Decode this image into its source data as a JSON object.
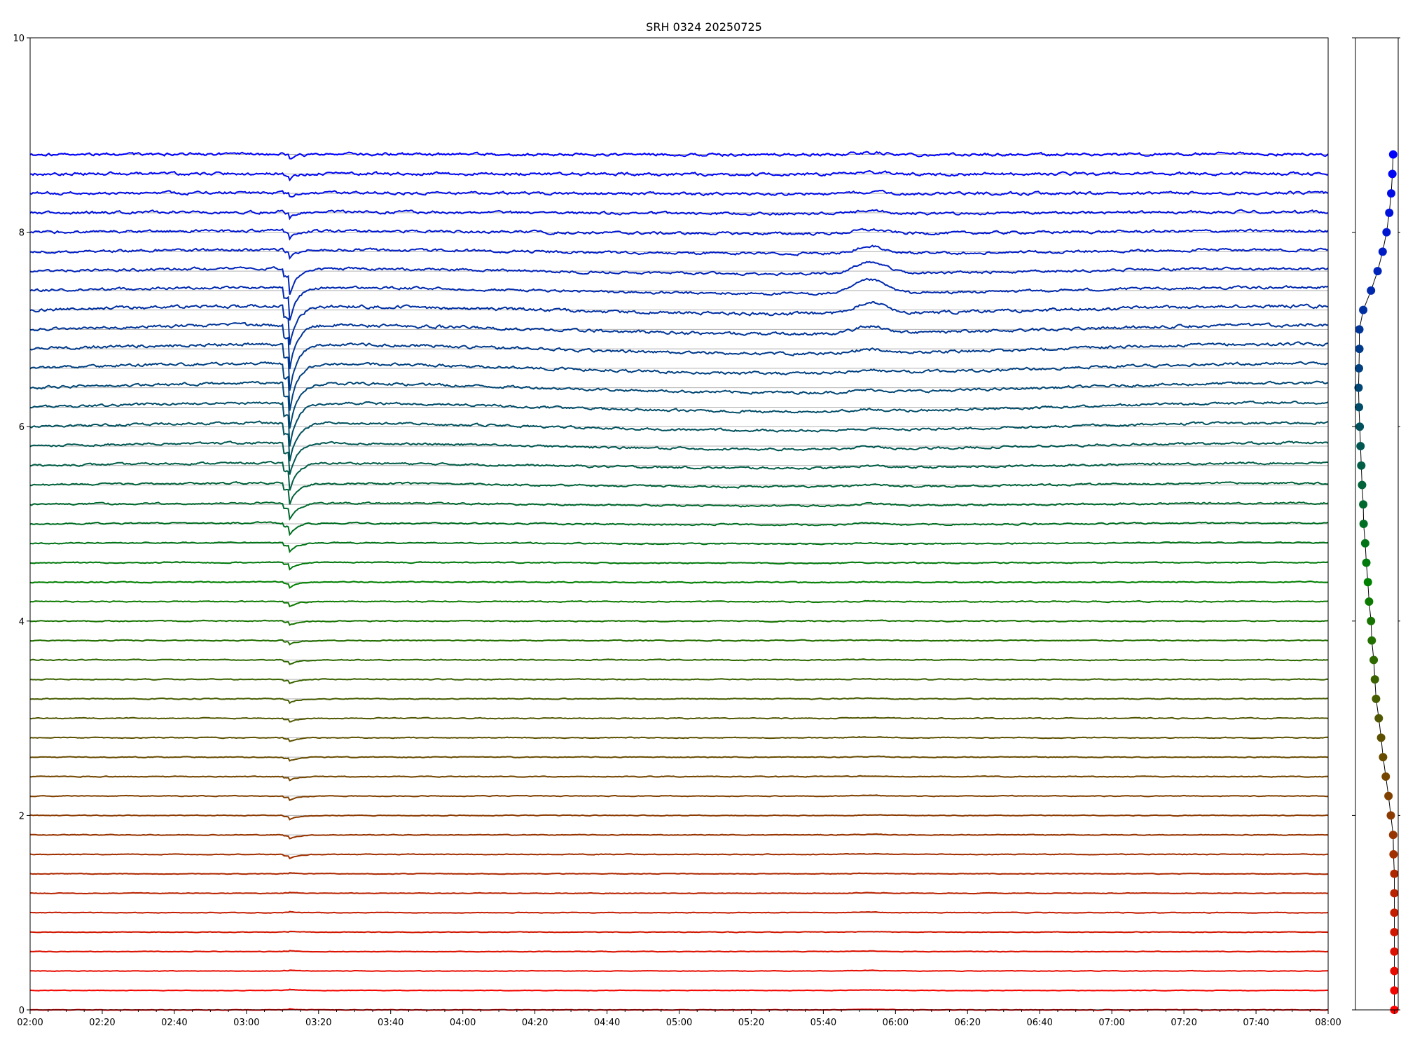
{
  "chart_data": {
    "type": "line",
    "title": "SRH 0324 20250725",
    "xlabel": "",
    "ylabel": "",
    "x_range": [
      "02:00",
      "08:00"
    ],
    "ylim": [
      0,
      10
    ],
    "y_ticks": [
      0,
      2,
      4,
      6,
      8,
      10
    ],
    "x_ticks": [
      "02:00",
      "02:20",
      "02:40",
      "03:00",
      "03:20",
      "03:40",
      "04:00",
      "04:20",
      "04:40",
      "05:00",
      "05:20",
      "05:40",
      "06:00",
      "06:20",
      "06:40",
      "07:00",
      "07:20",
      "07:40",
      "08:00"
    ],
    "grid": "horizontal reference line at each trace baseline",
    "legend": "none",
    "trace_baselines": [
      0.0,
      0.2,
      0.4,
      0.6,
      0.8,
      1.0,
      1.2,
      1.4,
      1.6,
      1.8,
      2.0,
      2.2,
      2.4,
      2.6,
      2.8,
      3.0,
      3.2,
      3.4,
      3.6,
      3.8,
      4.0,
      4.2,
      4.4,
      4.6,
      4.8,
      5.0,
      5.2,
      5.4,
      5.6,
      5.8,
      6.0,
      6.2,
      6.4,
      6.6,
      6.8,
      7.0,
      7.2,
      7.4,
      7.6,
      7.8,
      8.0,
      8.2,
      8.4,
      8.6,
      8.8
    ],
    "trace_offsets": [
      0.0,
      0.0,
      0.0,
      0.0,
      0.0,
      0.0,
      0.0,
      0.0,
      -0.02,
      -0.03,
      -0.09,
      -0.15,
      -0.22,
      -0.29,
      -0.34,
      -0.4,
      -0.47,
      -0.5,
      -0.53,
      -0.58,
      -0.6,
      -0.65,
      -0.68,
      -0.72,
      -0.75,
      -0.79,
      -0.8,
      -0.83,
      -0.85,
      -0.87,
      -0.89,
      -0.91,
      -0.92,
      -0.91,
      -0.9,
      -0.9,
      -0.8,
      -0.6,
      -0.43,
      -0.3,
      -0.2,
      -0.13,
      -0.08,
      -0.05,
      -0.03
    ],
    "events": [
      {
        "time": "03:12",
        "label": "sharp dip, strongest on middle traces"
      },
      {
        "time": "05:53",
        "label": "broad brightening peak on upper traces"
      }
    ],
    "side_panel": {
      "type": "scatter",
      "description": "per-trace marker at each baseline, horizontal position = trace offset",
      "xlim": [
        -1.0,
        0.1
      ]
    },
    "colors": {
      "bottom_trace": "#ff0000",
      "middle_trace": "#008000",
      "top_trace": "#0000ff",
      "grid": "#b0b0b0",
      "axes": "#000000"
    }
  }
}
